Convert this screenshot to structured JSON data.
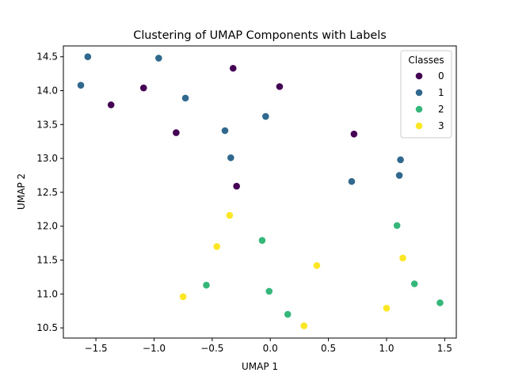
{
  "chart_data": {
    "type": "scatter",
    "title": "Clustering of UMAP Components with Labels",
    "xlabel": "UMAP 1",
    "ylabel": "UMAP 2",
    "xlim": [
      -1.78,
      1.6
    ],
    "ylim": [
      10.35,
      14.66
    ],
    "xticks": [
      -1.5,
      -1.0,
      -0.5,
      0.0,
      0.5,
      1.0,
      1.5
    ],
    "xtick_labels": [
      "−1.5",
      "−1.0",
      "−0.5",
      "0.0",
      "0.5",
      "1.0",
      "1.5"
    ],
    "yticks": [
      10.5,
      11.0,
      11.5,
      12.0,
      12.5,
      13.0,
      13.5,
      14.0,
      14.5
    ],
    "ytick_labels": [
      "10.5",
      "11.0",
      "11.5",
      "12.0",
      "12.5",
      "13.0",
      "13.5",
      "14.0",
      "14.5"
    ],
    "grid": false,
    "legend": {
      "title": "Classes",
      "placement": "top-right"
    },
    "series": [
      {
        "name": "0",
        "color": "#440154",
        "points": [
          {
            "x": -0.32,
            "y": 14.33
          },
          {
            "x": 0.08,
            "y": 14.06
          },
          {
            "x": -1.09,
            "y": 14.04
          },
          {
            "x": -1.37,
            "y": 13.79
          },
          {
            "x": -0.81,
            "y": 13.38
          },
          {
            "x": 0.72,
            "y": 13.36
          },
          {
            "x": -0.29,
            "y": 12.59
          }
        ]
      },
      {
        "name": "1",
        "color": "#31688e",
        "points": [
          {
            "x": -1.57,
            "y": 14.5
          },
          {
            "x": -0.96,
            "y": 14.48
          },
          {
            "x": -1.63,
            "y": 14.08
          },
          {
            "x": -0.73,
            "y": 13.89
          },
          {
            "x": -0.04,
            "y": 13.62
          },
          {
            "x": -0.39,
            "y": 13.41
          },
          {
            "x": -0.34,
            "y": 13.01
          },
          {
            "x": 1.12,
            "y": 12.98
          },
          {
            "x": 1.11,
            "y": 12.75
          },
          {
            "x": 0.7,
            "y": 12.66
          }
        ]
      },
      {
        "name": "2",
        "color": "#35b779",
        "points": [
          {
            "x": 1.09,
            "y": 12.01
          },
          {
            "x": -0.07,
            "y": 11.79
          },
          {
            "x": 1.24,
            "y": 11.15
          },
          {
            "x": -0.55,
            "y": 11.13
          },
          {
            "x": -0.01,
            "y": 11.04
          },
          {
            "x": 1.46,
            "y": 10.87
          },
          {
            "x": 0.15,
            "y": 10.7
          }
        ]
      },
      {
        "name": "3",
        "color": "#fde725",
        "points": [
          {
            "x": -0.35,
            "y": 12.16
          },
          {
            "x": -0.46,
            "y": 11.7
          },
          {
            "x": 1.14,
            "y": 11.53
          },
          {
            "x": 0.4,
            "y": 11.42
          },
          {
            "x": -0.75,
            "y": 10.96
          },
          {
            "x": 1.0,
            "y": 10.79
          },
          {
            "x": 0.29,
            "y": 10.53
          }
        ]
      }
    ]
  }
}
